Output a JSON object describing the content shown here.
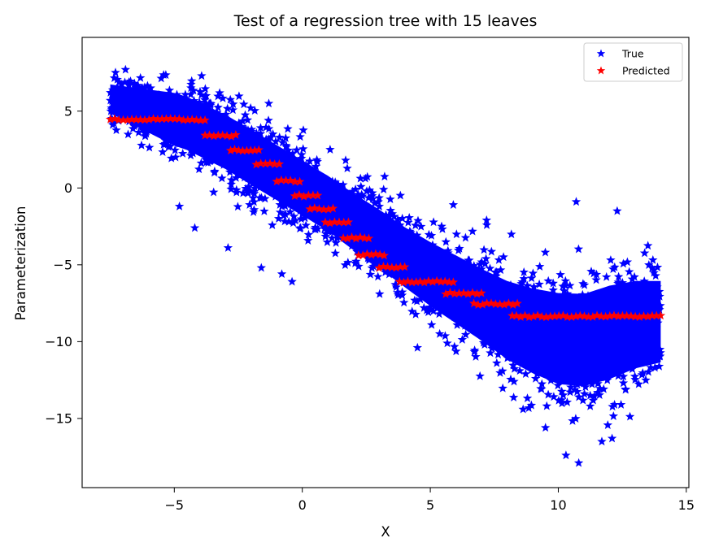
{
  "chart_data": {
    "type": "scatter",
    "title": "Test of a regression tree with 15 leaves",
    "xlabel": "X",
    "ylabel": "Parameterization",
    "xlim": [
      -8.6,
      15.1
    ],
    "ylim": [
      -19.5,
      9.8
    ],
    "xticks": [
      -5,
      0,
      5,
      10,
      15
    ],
    "yticks": [
      5,
      0,
      -5,
      -10,
      -15
    ],
    "xtick_labels": [
      "−5",
      "0",
      "5",
      "10",
      "15"
    ],
    "ytick_labels": [
      "5",
      "0",
      "−5",
      "−10",
      "−15"
    ],
    "legend": {
      "position": "top-right",
      "entries": [
        "True",
        "Predicted"
      ]
    },
    "marker": "star",
    "series": [
      {
        "name": "True",
        "color": "#0000ff",
        "description": "dense noisy band of observations",
        "band_center": [
          [
            -7.5,
            5.8
          ],
          [
            -6.0,
            5.0
          ],
          [
            -4.5,
            4.2
          ],
          [
            -3.0,
            3.0
          ],
          [
            -2.0,
            2.0
          ],
          [
            -1.0,
            1.0
          ],
          [
            0.0,
            0.0
          ],
          [
            1.0,
            -1.0
          ],
          [
            2.0,
            -2.2
          ],
          [
            3.0,
            -3.3
          ],
          [
            4.0,
            -4.5
          ],
          [
            5.0,
            -5.6
          ],
          [
            6.0,
            -6.6
          ],
          [
            7.0,
            -7.6
          ],
          [
            8.0,
            -8.6
          ],
          [
            9.0,
            -9.3
          ],
          [
            10.0,
            -9.8
          ],
          [
            11.0,
            -9.9
          ],
          [
            12.0,
            -9.4
          ],
          [
            13.0,
            -8.9
          ],
          [
            14.0,
            -8.7
          ]
        ],
        "band_halfwidth": [
          [
            -7.5,
            1.2
          ],
          [
            -5.0,
            2.2
          ],
          [
            -2.0,
            2.3
          ],
          [
            1.0,
            2.3
          ],
          [
            4.0,
            2.5
          ],
          [
            7.0,
            3.0
          ],
          [
            10.0,
            3.8
          ],
          [
            12.0,
            3.9
          ],
          [
            14.0,
            3.4
          ]
        ],
        "outliers": [
          [
            -4.8,
            -1.2
          ],
          [
            -4.2,
            -2.6
          ],
          [
            -2.9,
            -3.9
          ],
          [
            -1.6,
            -5.2
          ],
          [
            -0.8,
            -5.6
          ],
          [
            -0.4,
            -6.1
          ],
          [
            10.7,
            -0.9
          ],
          [
            12.3,
            -1.5
          ],
          [
            7.2,
            -2.1
          ],
          [
            5.9,
            -1.1
          ],
          [
            4.5,
            -10.4
          ],
          [
            9.5,
            -15.6
          ],
          [
            10.3,
            -17.4
          ],
          [
            10.8,
            -17.9
          ],
          [
            11.7,
            -16.5
          ],
          [
            12.1,
            -16.3
          ]
        ]
      },
      {
        "name": "Predicted",
        "color": "#ff0000",
        "steps": [
          {
            "x0": -7.5,
            "x1": -3.8,
            "y": 4.45
          },
          {
            "x0": -3.8,
            "x1": -2.6,
            "y": 3.4
          },
          {
            "x0": -2.8,
            "x1": -1.7,
            "y": 2.45
          },
          {
            "x0": -1.8,
            "x1": -0.9,
            "y": 1.55
          },
          {
            "x0": -1.0,
            "x1": -0.1,
            "y": 0.45
          },
          {
            "x0": -0.3,
            "x1": 0.6,
            "y": -0.5
          },
          {
            "x0": 0.3,
            "x1": 1.2,
            "y": -1.35
          },
          {
            "x0": 0.9,
            "x1": 1.8,
            "y": -2.25
          },
          {
            "x0": 1.6,
            "x1": 2.6,
            "y": -3.25
          },
          {
            "x0": 2.2,
            "x1": 3.2,
            "y": -4.35
          },
          {
            "x0": 3.0,
            "x1": 4.0,
            "y": -5.15
          },
          {
            "x0": 3.8,
            "x1": 5.9,
            "y": -6.1
          },
          {
            "x0": 5.6,
            "x1": 7.0,
            "y": -6.85
          },
          {
            "x0": 6.7,
            "x1": 8.4,
            "y": -7.55
          },
          {
            "x0": 8.2,
            "x1": 14.0,
            "y": -8.35
          }
        ]
      }
    ]
  }
}
